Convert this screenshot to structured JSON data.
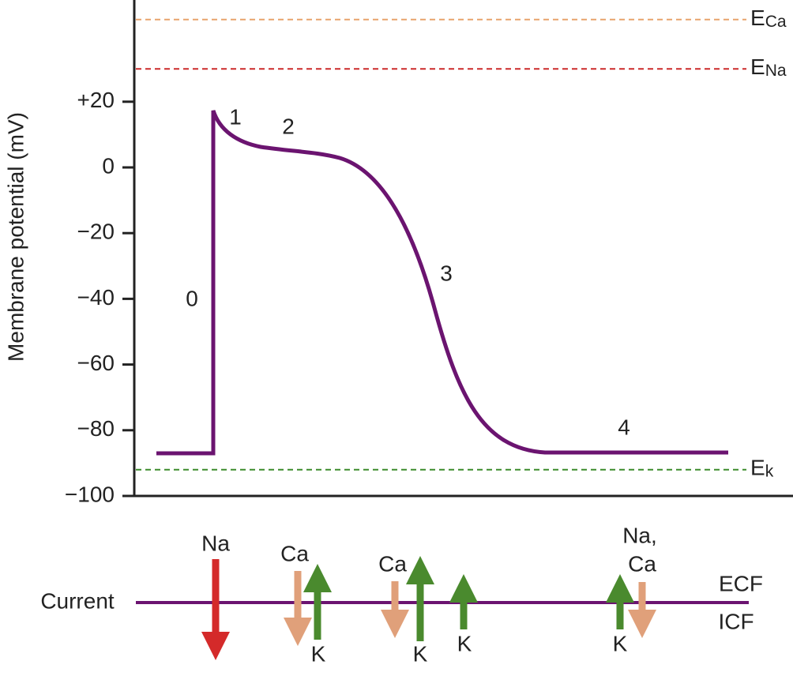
{
  "axis": {
    "label": "Membrane potential (mV)",
    "ticks": [
      {
        "value": 20,
        "label": "+20"
      },
      {
        "value": 0,
        "label": "0"
      },
      {
        "value": -20,
        "label": "−20"
      },
      {
        "value": -40,
        "label": "−40"
      },
      {
        "value": -60,
        "label": "−60"
      },
      {
        "value": -80,
        "label": "−80"
      },
      {
        "value": -100,
        "label": "−100"
      }
    ]
  },
  "equilibrium": [
    {
      "letter": "E",
      "ion": "Ca",
      "value": 45,
      "color": "#e8a46c"
    },
    {
      "letter": "E",
      "ion": "Na",
      "value": 30,
      "color": "#cc2a2a"
    },
    {
      "letter": "E",
      "ion": "k",
      "value": -92,
      "color": "#3c8c2c"
    }
  ],
  "phases": [
    "0",
    "1",
    "2",
    "3",
    "4"
  ],
  "current": {
    "label": "Current",
    "ecf": "ECF",
    "icf": "ICF",
    "ions": [
      [
        "Na"
      ],
      [
        "Ca"
      ],
      [
        "K"
      ],
      [
        "Ca"
      ],
      [
        "K"
      ],
      [
        "K"
      ],
      [
        "Na,",
        "Ca"
      ],
      [
        "K"
      ]
    ]
  }
}
